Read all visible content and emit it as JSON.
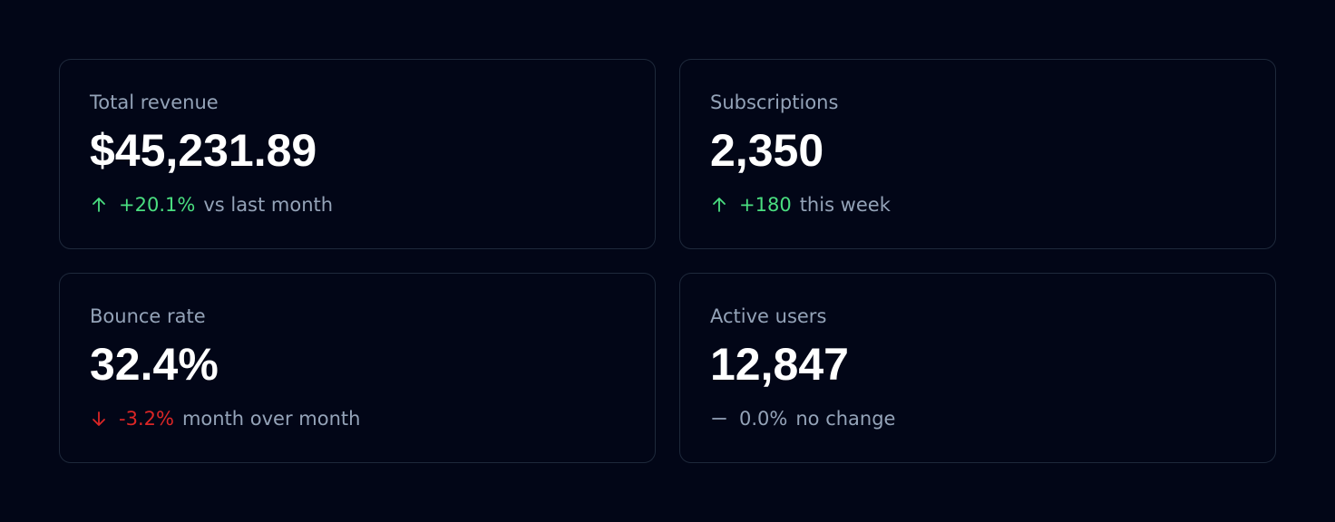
{
  "cards": [
    {
      "label": "Total revenue",
      "value": "$45,231.89",
      "delta": "+20.1%",
      "note": "vs last month",
      "trend": "up",
      "color": "#4ade80"
    },
    {
      "label": "Subscriptions",
      "value": "2,350",
      "delta": "+180",
      "note": "this week",
      "trend": "up",
      "color": "#4ade80"
    },
    {
      "label": "Bounce rate",
      "value": "32.4%",
      "delta": "-3.2%",
      "note": "month over month",
      "trend": "down",
      "color": "#dc2626"
    },
    {
      "label": "Active users",
      "value": "12,847",
      "delta": "0.0%",
      "note": "no change",
      "trend": "flat",
      "color": "#94a3b8"
    }
  ]
}
